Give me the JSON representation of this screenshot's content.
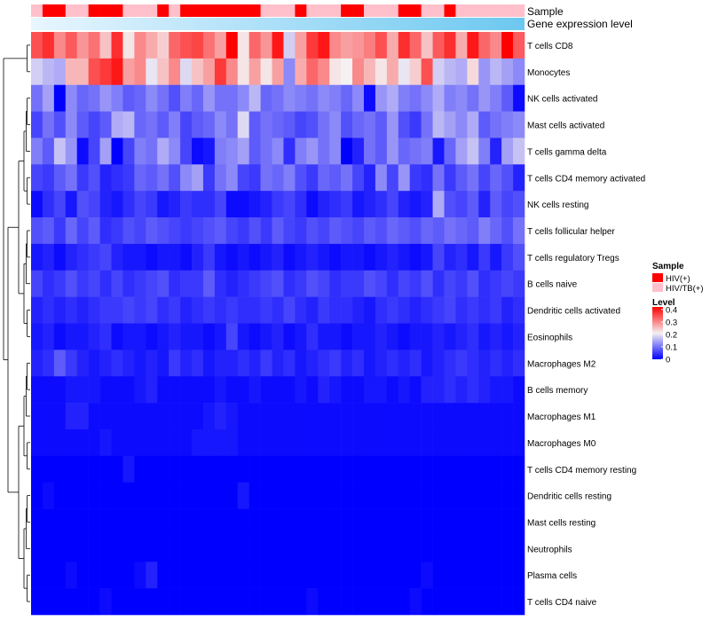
{
  "chart_data": {
    "type": "heatmap",
    "annotation_titles": {
      "sample": "Sample",
      "expression": "Gene expression level"
    },
    "rows": [
      "T cells CD8",
      "Monocytes",
      "NK cells activated",
      "Mast cells activated",
      "T cells gamma delta",
      "T cells CD4 memory activated",
      "NK cells resting",
      "T cells follicular helper",
      "T cells regulatory  Tregs",
      "B cells naive",
      "Dendritic cells activated",
      "Eosinophils",
      "Macrophages M2",
      "B cells memory",
      "Macrophages M1",
      "Macrophages M0",
      "T cells CD4 memory resting",
      "Dendritic cells resting",
      "Mast cells resting",
      "Neutrophils",
      "Plasma cells",
      "T cells CD4 naive"
    ],
    "sample_groups": [
      1,
      0,
      0,
      1,
      1,
      0,
      0,
      0,
      1,
      1,
      1,
      0,
      1,
      0,
      0,
      0,
      0,
      0,
      0,
      0,
      1,
      1,
      1,
      0,
      1,
      1,
      1,
      0,
      0,
      1,
      1,
      1,
      0,
      0,
      1,
      1,
      0,
      1,
      1,
      1,
      1,
      1,
      1
    ],
    "expression_level_gradient": [
      "#e8f6ff",
      "#6cc8f0"
    ],
    "legend": {
      "sample_title": "Sample",
      "sample_entries": [
        {
          "label": "HIV(+)",
          "color": "#ff0000"
        },
        {
          "label": "HIV/TB(+)",
          "color": "#ffc0cb"
        }
      ],
      "level_title": "Level",
      "level_ticks": [
        0.4,
        0.3,
        0.2,
        0.1,
        0
      ],
      "level_tick_labels": [
        "0.4",
        "0.3",
        "0.2",
        "0.1",
        "0"
      ],
      "level_range": [
        0,
        0.42
      ]
    },
    "colors": {
      "low": "#0000ff",
      "mid": "#f5f0f2",
      "high": "#ff0000"
    },
    "values": [
      [
        0.35,
        0.38,
        0.3,
        0.34,
        0.29,
        0.32,
        0.25,
        0.38,
        0.22,
        0.3,
        0.27,
        0.24,
        0.33,
        0.35,
        0.36,
        0.32,
        0.28,
        0.42,
        0.22,
        0.33,
        0.29,
        0.4,
        0.18,
        0.28,
        0.37,
        0.4,
        0.3,
        0.28,
        0.29,
        0.31,
        0.35,
        0.27,
        0.38,
        0.33,
        0.25,
        0.34,
        0.38,
        0.27,
        0.4,
        0.33,
        0.3,
        0.42,
        0.34
      ],
      [
        0.18,
        0.16,
        0.15,
        0.26,
        0.26,
        0.35,
        0.37,
        0.4,
        0.28,
        0.3,
        0.2,
        0.25,
        0.3,
        0.19,
        0.25,
        0.28,
        0.37,
        0.3,
        0.22,
        0.28,
        0.22,
        0.28,
        0.12,
        0.27,
        0.33,
        0.3,
        0.22,
        0.21,
        0.3,
        0.26,
        0.22,
        0.27,
        0.2,
        0.24,
        0.35,
        0.18,
        0.16,
        0.15,
        0.23,
        0.13,
        0.16,
        0.14,
        0.12
      ],
      [
        0.1,
        0.14,
        0.0,
        0.12,
        0.09,
        0.1,
        0.13,
        0.11,
        0.08,
        0.09,
        0.12,
        0.1,
        0.07,
        0.11,
        0.09,
        0.13,
        0.1,
        0.1,
        0.12,
        0.16,
        0.09,
        0.1,
        0.12,
        0.11,
        0.1,
        0.12,
        0.11,
        0.09,
        0.12,
        0.01,
        0.13,
        0.15,
        0.11,
        0.1,
        0.12,
        0.15,
        0.11,
        0.12,
        0.1,
        0.13,
        0.11,
        0.08,
        0.01
      ],
      [
        0.06,
        0.1,
        0.07,
        0.12,
        0.08,
        0.06,
        0.08,
        0.15,
        0.16,
        0.09,
        0.1,
        0.08,
        0.11,
        0.06,
        0.08,
        0.09,
        0.12,
        0.1,
        0.19,
        0.08,
        0.1,
        0.09,
        0.08,
        0.06,
        0.07,
        0.1,
        0.12,
        0.07,
        0.09,
        0.1,
        0.08,
        0.13,
        0.07,
        0.05,
        0.1,
        0.16,
        0.14,
        0.12,
        0.15,
        0.08,
        0.1,
        0.11,
        0.12
      ],
      [
        0.11,
        0.08,
        0.17,
        0.13,
        0.01,
        0.06,
        0.14,
        0.0,
        0.06,
        0.11,
        0.1,
        0.15,
        0.12,
        0.06,
        0.01,
        0.02,
        0.11,
        0.12,
        0.14,
        0.08,
        0.1,
        0.12,
        0.04,
        0.11,
        0.13,
        0.1,
        0.12,
        0.0,
        0.03,
        0.1,
        0.08,
        0.13,
        0.09,
        0.1,
        0.11,
        0.02,
        0.09,
        0.14,
        0.17,
        0.11,
        0.03,
        0.14,
        0.17
      ],
      [
        0.06,
        0.05,
        0.08,
        0.1,
        0.05,
        0.07,
        0.03,
        0.04,
        0.05,
        0.09,
        0.08,
        0.1,
        0.07,
        0.12,
        0.14,
        0.05,
        0.1,
        0.12,
        0.06,
        0.05,
        0.1,
        0.09,
        0.11,
        0.07,
        0.05,
        0.09,
        0.08,
        0.1,
        0.06,
        0.03,
        0.12,
        0.06,
        0.13,
        0.05,
        0.04,
        0.1,
        0.05,
        0.08,
        0.1,
        0.06,
        0.09,
        0.07,
        0.03
      ],
      [
        0.01,
        0.04,
        0.06,
        0.02,
        0.07,
        0.06,
        0.03,
        0.02,
        0.04,
        0.06,
        0.05,
        0.02,
        0.03,
        0.05,
        0.04,
        0.04,
        0.06,
        0.01,
        0.01,
        0.02,
        0.03,
        0.05,
        0.06,
        0.04,
        0.01,
        0.03,
        0.04,
        0.05,
        0.02,
        0.03,
        0.04,
        0.06,
        0.03,
        0.02,
        0.03,
        0.15,
        0.07,
        0.06,
        0.08,
        0.03,
        0.08,
        0.06,
        0.07
      ],
      [
        0.07,
        0.08,
        0.05,
        0.09,
        0.06,
        0.08,
        0.04,
        0.05,
        0.07,
        0.06,
        0.08,
        0.07,
        0.06,
        0.05,
        0.06,
        0.07,
        0.08,
        0.06,
        0.05,
        0.07,
        0.05,
        0.08,
        0.06,
        0.05,
        0.07,
        0.06,
        0.08,
        0.07,
        0.06,
        0.08,
        0.07,
        0.09,
        0.08,
        0.07,
        0.09,
        0.08,
        0.1,
        0.09,
        0.08,
        0.11,
        0.09,
        0.07,
        0.1
      ],
      [
        0.02,
        0.03,
        0.01,
        0.03,
        0.04,
        0.05,
        0.06,
        0.03,
        0.02,
        0.02,
        0.01,
        0.02,
        0.02,
        0.01,
        0.03,
        0.05,
        0.02,
        0.01,
        0.02,
        0.01,
        0.02,
        0.03,
        0.01,
        0.02,
        0.03,
        0.02,
        0.01,
        0.02,
        0.02,
        0.01,
        0.02,
        0.03,
        0.02,
        0.01,
        0.02,
        0.06,
        0.03,
        0.04,
        0.02,
        0.05,
        0.02,
        0.05,
        0.07
      ],
      [
        0.06,
        0.04,
        0.05,
        0.07,
        0.05,
        0.06,
        0.04,
        0.06,
        0.04,
        0.05,
        0.06,
        0.07,
        0.04,
        0.05,
        0.05,
        0.08,
        0.04,
        0.03,
        0.04,
        0.05,
        0.06,
        0.07,
        0.04,
        0.05,
        0.07,
        0.06,
        0.04,
        0.05,
        0.05,
        0.07,
        0.06,
        0.04,
        0.06,
        0.05,
        0.07,
        0.04,
        0.06,
        0.05,
        0.07,
        0.04,
        0.05,
        0.06,
        0.05
      ],
      [
        0.03,
        0.04,
        0.03,
        0.04,
        0.03,
        0.04,
        0.05,
        0.05,
        0.06,
        0.05,
        0.06,
        0.04,
        0.05,
        0.03,
        0.04,
        0.05,
        0.04,
        0.05,
        0.04,
        0.04,
        0.05,
        0.04,
        0.06,
        0.04,
        0.03,
        0.05,
        0.04,
        0.04,
        0.03,
        0.02,
        0.04,
        0.05,
        0.04,
        0.03,
        0.04,
        0.05,
        0.06,
        0.04,
        0.05,
        0.04,
        0.05,
        0.03,
        0.04
      ],
      [
        0.02,
        0.03,
        0.01,
        0.02,
        0.02,
        0.03,
        0.04,
        0.01,
        0.02,
        0.02,
        0.01,
        0.02,
        0.03,
        0.02,
        0.02,
        0.01,
        0.02,
        0.06,
        0.02,
        0.01,
        0.02,
        0.03,
        0.01,
        0.02,
        0.04,
        0.02,
        0.02,
        0.01,
        0.02,
        0.02,
        0.03,
        0.02,
        0.01,
        0.02,
        0.02,
        0.03,
        0.02,
        0.03,
        0.04,
        0.02,
        0.03,
        0.02,
        0.03
      ],
      [
        0.03,
        0.04,
        0.08,
        0.05,
        0.03,
        0.02,
        0.03,
        0.04,
        0.03,
        0.02,
        0.03,
        0.02,
        0.05,
        0.03,
        0.04,
        0.02,
        0.03,
        0.03,
        0.04,
        0.03,
        0.05,
        0.03,
        0.04,
        0.02,
        0.03,
        0.04,
        0.05,
        0.03,
        0.04,
        0.02,
        0.03,
        0.04,
        0.03,
        0.04,
        0.02,
        0.03,
        0.04,
        0.05,
        0.04,
        0.03,
        0.04,
        0.03,
        0.04
      ],
      [
        0.01,
        0.01,
        0.01,
        0.02,
        0.02,
        0.02,
        0.01,
        0.01,
        0.01,
        0.02,
        0.03,
        0.01,
        0.01,
        0.01,
        0.01,
        0.01,
        0.02,
        0.01,
        0.01,
        0.02,
        0.01,
        0.01,
        0.01,
        0.02,
        0.01,
        0.03,
        0.02,
        0.01,
        0.01,
        0.02,
        0.02,
        0.01,
        0.02,
        0.01,
        0.03,
        0.03,
        0.04,
        0.03,
        0.04,
        0.03,
        0.02,
        0.02,
        0.01
      ],
      [
        0.01,
        0.01,
        0.01,
        0.03,
        0.03,
        0.01,
        0.01,
        0.01,
        0.01,
        0.01,
        0.01,
        0.01,
        0.01,
        0.01,
        0.01,
        0.02,
        0.03,
        0.02,
        0.01,
        0.01,
        0.01,
        0.01,
        0.01,
        0.01,
        0.01,
        0.01,
        0.01,
        0.01,
        0.01,
        0.01,
        0.01,
        0.01,
        0.01,
        0.01,
        0.01,
        0.01,
        0.01,
        0.01,
        0.01,
        0.01,
        0.01,
        0.01,
        0.01
      ],
      [
        0.01,
        0.01,
        0.01,
        0.01,
        0.01,
        0.01,
        0.02,
        0.01,
        0.01,
        0.01,
        0.01,
        0.01,
        0.01,
        0.01,
        0.02,
        0.02,
        0.02,
        0.02,
        0.01,
        0.01,
        0.01,
        0.01,
        0.01,
        0.01,
        0.01,
        0.01,
        0.01,
        0.01,
        0.01,
        0.01,
        0.01,
        0.01,
        0.01,
        0.01,
        0.01,
        0.01,
        0.01,
        0.01,
        0.01,
        0.01,
        0.01,
        0.01,
        0.01
      ],
      [
        0.0,
        0.0,
        0.0,
        0.0,
        0.0,
        0.0,
        0.0,
        0.0,
        0.02,
        0.0,
        0.0,
        0.0,
        0.0,
        0.0,
        0.0,
        0.0,
        0.0,
        0.0,
        0.0,
        0.0,
        0.0,
        0.0,
        0.0,
        0.0,
        0.0,
        0.0,
        0.0,
        0.0,
        0.0,
        0.0,
        0.0,
        0.0,
        0.0,
        0.0,
        0.0,
        0.0,
        0.0,
        0.0,
        0.0,
        0.0,
        0.0,
        0.0,
        0.0
      ],
      [
        0.0,
        0.01,
        0.0,
        0.0,
        0.0,
        0.0,
        0.0,
        0.0,
        0.0,
        0.0,
        0.0,
        0.0,
        0.0,
        0.0,
        0.0,
        0.0,
        0.0,
        0.0,
        0.02,
        0.0,
        0.0,
        0.0,
        0.0,
        0.0,
        0.0,
        0.0,
        0.0,
        0.0,
        0.0,
        0.0,
        0.0,
        0.0,
        0.0,
        0.0,
        0.0,
        0.0,
        0.0,
        0.0,
        0.0,
        0.0,
        0.0,
        0.0,
        0.0
      ],
      [
        0.0,
        0.0,
        0.0,
        0.0,
        0.0,
        0.0,
        0.0,
        0.0,
        0.0,
        0.0,
        0.0,
        0.0,
        0.0,
        0.0,
        0.0,
        0.0,
        0.0,
        0.0,
        0.0,
        0.0,
        0.0,
        0.0,
        0.0,
        0.0,
        0.0,
        0.0,
        0.0,
        0.0,
        0.0,
        0.0,
        0.0,
        0.0,
        0.0,
        0.0,
        0.0,
        0.0,
        0.0,
        0.0,
        0.0,
        0.0,
        0.0,
        0.0,
        0.0
      ],
      [
        0.0,
        0.0,
        0.0,
        0.0,
        0.0,
        0.0,
        0.0,
        0.0,
        0.0,
        0.0,
        0.0,
        0.0,
        0.0,
        0.0,
        0.0,
        0.0,
        0.0,
        0.0,
        0.0,
        0.0,
        0.0,
        0.0,
        0.0,
        0.0,
        0.0,
        0.0,
        0.0,
        0.0,
        0.0,
        0.0,
        0.0,
        0.0,
        0.0,
        0.0,
        0.0,
        0.0,
        0.0,
        0.0,
        0.0,
        0.0,
        0.0,
        0.0,
        0.0
      ],
      [
        0.0,
        0.0,
        0.0,
        0.01,
        0.0,
        0.0,
        0.0,
        0.0,
        0.0,
        0.01,
        0.03,
        0.0,
        0.0,
        0.0,
        0.0,
        0.0,
        0.0,
        0.0,
        0.0,
        0.0,
        0.0,
        0.0,
        0.0,
        0.0,
        0.0,
        0.0,
        0.0,
        0.0,
        0.0,
        0.0,
        0.0,
        0.0,
        0.0,
        0.0,
        0.01,
        0.0,
        0.0,
        0.0,
        0.0,
        0.0,
        0.0,
        0.0,
        0.0
      ],
      [
        0.0,
        0.0,
        0.0,
        0.0,
        0.0,
        0.0,
        0.01,
        0.0,
        0.0,
        0.0,
        0.0,
        0.0,
        0.0,
        0.0,
        0.0,
        0.0,
        0.0,
        0.0,
        0.0,
        0.0,
        0.0,
        0.0,
        0.0,
        0.0,
        0.01,
        0.0,
        0.0,
        0.0,
        0.0,
        0.0,
        0.0,
        0.0,
        0.0,
        0.01,
        0.0,
        0.0,
        0.0,
        0.0,
        0.0,
        0.0,
        0.0,
        0.0,
        0.0
      ]
    ]
  }
}
